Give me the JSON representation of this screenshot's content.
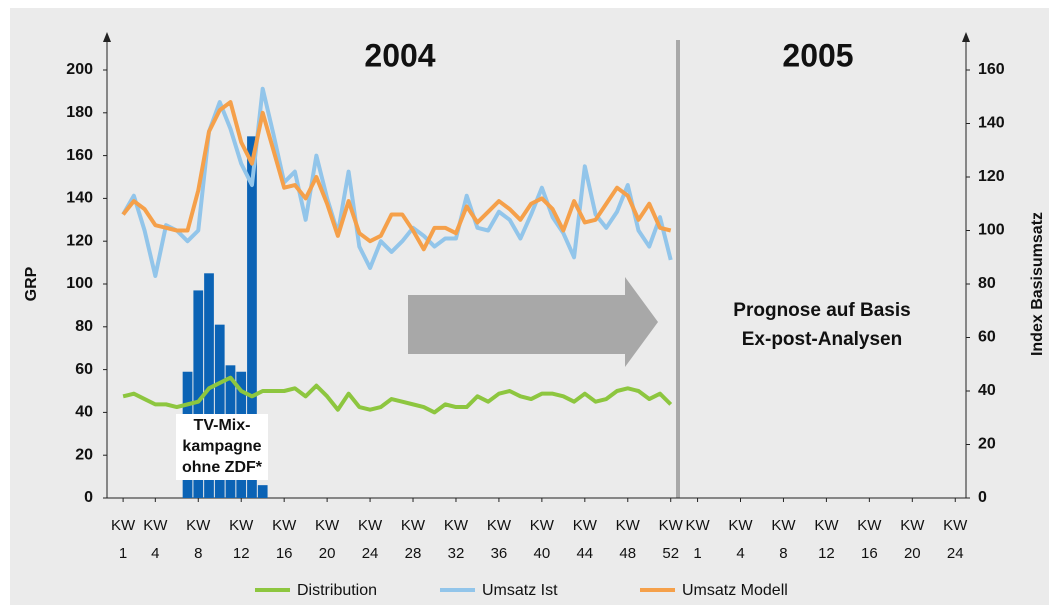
{
  "chart_data": {
    "type": "line",
    "titles": [
      "2004",
      "2005"
    ],
    "y_label": "GRP",
    "y2_label": "Index Basisumsatz",
    "annotation_lines": [
      "TV-Mix-",
      "kampagne",
      "ohne ZDF*"
    ],
    "forecast_lines": [
      "Prognose auf Basis",
      "Ex-post-Analysen"
    ],
    "xlim": [
      -0.5,
      79.5
    ],
    "xticks": [
      {
        "value": 1,
        "label": "KW 1"
      },
      {
        "value": 4,
        "label": "KW 4"
      },
      {
        "value": 8,
        "label": "KW 8"
      },
      {
        "value": 12,
        "label": "KW 12"
      },
      {
        "value": 16,
        "label": "KW 16"
      },
      {
        "value": 20,
        "label": "KW 20"
      },
      {
        "value": 24,
        "label": "KW 24"
      },
      {
        "value": 28,
        "label": "KW 28"
      },
      {
        "value": 32,
        "label": "KW 32"
      },
      {
        "value": 36,
        "label": "KW 36"
      },
      {
        "value": 40,
        "label": "KW 40"
      },
      {
        "value": 44,
        "label": "KW 44"
      },
      {
        "value": 48,
        "label": "KW 48"
      },
      {
        "value": 52,
        "label": "KW 52"
      },
      {
        "value": 54.5,
        "label": "KW 1"
      },
      {
        "value": 58.5,
        "label": "KW 4"
      },
      {
        "value": 62.5,
        "label": "KW 8"
      },
      {
        "value": 66.5,
        "label": "KW 12"
      },
      {
        "value": 70.5,
        "label": "KW 16"
      },
      {
        "value": 74.5,
        "label": "KW 20"
      },
      {
        "value": 78.5,
        "label": "KW 24"
      }
    ],
    "ylim": [
      0,
      200
    ],
    "yticks": [
      0,
      20,
      40,
      60,
      80,
      100,
      120,
      140,
      160,
      180,
      200
    ],
    "y2lim": [
      0,
      160
    ],
    "y2ticks": [
      0,
      20,
      40,
      60,
      80,
      100,
      120,
      140,
      160
    ],
    "bars": {
      "color": "#0b63b5",
      "x": [
        7,
        8,
        9,
        10,
        11,
        12,
        13,
        14
      ],
      "values": [
        59,
        97,
        105,
        81,
        62,
        59,
        169,
        6
      ]
    },
    "x": [
      1,
      2,
      3,
      4,
      5,
      6,
      7,
      8,
      9,
      10,
      11,
      12,
      13,
      14,
      15,
      16,
      17,
      18,
      19,
      20,
      21,
      22,
      23,
      24,
      25,
      26,
      27,
      28,
      29,
      30,
      31,
      32,
      33,
      34,
      35,
      36,
      37,
      38,
      39,
      40,
      41,
      42,
      43,
      44,
      45,
      46,
      47,
      48,
      49,
      50,
      51,
      52
    ],
    "series": [
      {
        "name": "Distribution",
        "color": "#8dc63f",
        "axis": "y2",
        "values": [
          38,
          39,
          37,
          35,
          35,
          34,
          35,
          36,
          41,
          43,
          45,
          40,
          38,
          40,
          40,
          40,
          41,
          38,
          42,
          38,
          33,
          39,
          34,
          33,
          34,
          37,
          36,
          35,
          34,
          32,
          35,
          34,
          34,
          38,
          36,
          39,
          40,
          38,
          37,
          39,
          39,
          38,
          36,
          39,
          36,
          37,
          40,
          41,
          40,
          37,
          39,
          35
        ]
      },
      {
        "name": "Umsatz Ist",
        "color": "#92c5ea",
        "axis": "y2",
        "values": [
          106,
          113,
          100,
          83,
          102,
          100,
          96,
          100,
          137,
          148,
          138,
          125,
          117,
          153,
          136,
          118,
          122,
          104,
          128,
          112,
          99,
          122,
          94,
          86,
          96,
          92,
          96,
          101,
          98,
          94,
          97,
          97,
          113,
          101,
          100,
          107,
          104,
          97,
          106,
          116,
          105,
          99,
          90,
          124,
          106,
          101,
          107,
          117,
          100,
          94,
          105,
          89
        ]
      },
      {
        "name": "Umsatz Modell",
        "color": "#f5a04a",
        "axis": "y2",
        "values": [
          106,
          111,
          108,
          102,
          101,
          100,
          100,
          115,
          137,
          145,
          148,
          133,
          125,
          144,
          130,
          116,
          117,
          112,
          120,
          110,
          98,
          111,
          99,
          96,
          98,
          106,
          106,
          100,
          93,
          101,
          101,
          99,
          109,
          103,
          107,
          111,
          108,
          104,
          110,
          112,
          108,
          100,
          111,
          103,
          104,
          110,
          116,
          113,
          104,
          110,
          101,
          100
        ]
      }
    ]
  }
}
